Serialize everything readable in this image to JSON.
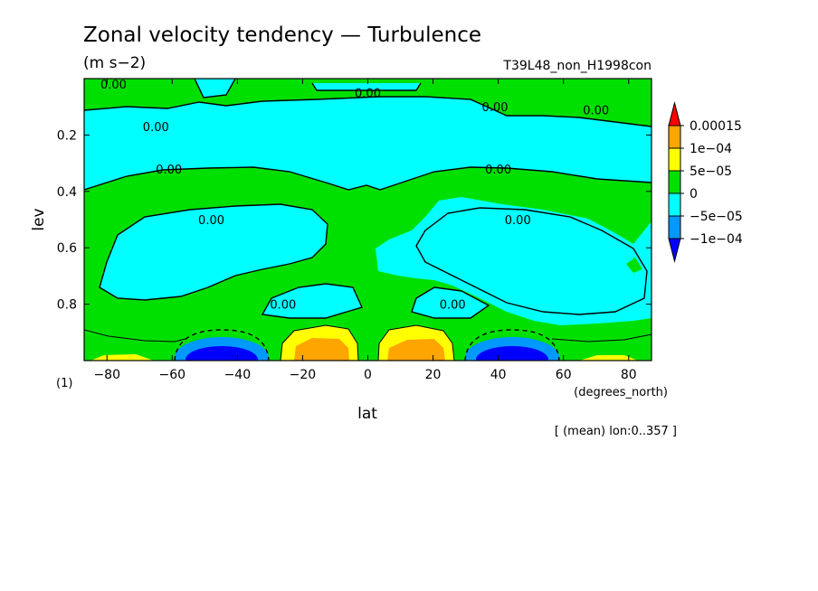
{
  "chart_data": {
    "type": "contour",
    "title": "Zonal velocity tendency — Turbulence",
    "units": "(m s−2)",
    "run_name": "T39L48_non_H1998con",
    "xlabel": "lat",
    "x_units": "(degrees_north)",
    "ylabel": "lev",
    "y_units": "(1)",
    "footnote": "[ (mean) lon:0..357 ]",
    "xlim": [
      -87,
      87
    ],
    "ylim": [
      0.0,
      1.0
    ],
    "y_inverted": true,
    "x_ticks": [
      {
        "v": -80,
        "label": "−80"
      },
      {
        "v": -60,
        "label": "−60"
      },
      {
        "v": -40,
        "label": "−40"
      },
      {
        "v": -20,
        "label": "−20"
      },
      {
        "v": 0,
        "label": "0"
      },
      {
        "v": 20,
        "label": "20"
      },
      {
        "v": 40,
        "label": "40"
      },
      {
        "v": 60,
        "label": "60"
      },
      {
        "v": 80,
        "label": "80"
      }
    ],
    "y_ticks": [
      {
        "v": 0.2,
        "label": "0.2"
      },
      {
        "v": 0.4,
        "label": "0.4"
      },
      {
        "v": 0.6,
        "label": "0.6"
      },
      {
        "v": 0.8,
        "label": "0.8"
      }
    ],
    "colorbar": {
      "levels": [
        {
          "label": "0.00015",
          "color": "#ff0000"
        },
        {
          "label": "1e−04",
          "color": "#ffa500"
        },
        {
          "label": "5e−05",
          "color": "#ffff00"
        },
        {
          "label": "0",
          "color": "#00e000"
        },
        {
          "label": "−5e−05",
          "color": "#00ffff"
        },
        {
          "label": "−1e−04",
          "color": "#0099ff"
        }
      ],
      "bottom_color": "#0000ff"
    },
    "contour_labels": [
      {
        "text": "0.00",
        "lat": -78,
        "lev": 0.02
      },
      {
        "text": "0.00",
        "lat": 0,
        "lev": 0.05
      },
      {
        "text": "0.00",
        "lat": 39,
        "lev": 0.1
      },
      {
        "text": "0.00",
        "lat": 70,
        "lev": 0.11
      },
      {
        "text": "0.00",
        "lat": -65,
        "lev": 0.17
      },
      {
        "text": "0.00",
        "lat": -61,
        "lev": 0.32
      },
      {
        "text": "0.00",
        "lat": 40,
        "lev": 0.32
      },
      {
        "text": "0.00",
        "lat": -48,
        "lev": 0.5
      },
      {
        "text": "0.00",
        "lat": 46,
        "lev": 0.5
      },
      {
        "text": "0.00",
        "lat": -26,
        "lev": 0.8
      },
      {
        "text": "0.00",
        "lat": 26,
        "lev": 0.8
      }
    ],
    "regions": [
      {
        "name": "near-surface easterly tendency (SH)",
        "color": "#0000ff",
        "lat": -43,
        "lev": 0.96,
        "w": 18,
        "h": 0.06
      },
      {
        "name": "near-surface easterly tendency (NH)",
        "color": "#0000ff",
        "lat": 43,
        "lev": 0.96,
        "w": 18,
        "h": 0.06
      },
      {
        "name": "near-surface westerly tendency (SH)",
        "color": "#ffa500",
        "lat": -15,
        "lev": 0.96,
        "w": 12,
        "h": 0.06
      },
      {
        "name": "near-surface westerly tendency (NH)",
        "color": "#ffa500",
        "lat": 15,
        "lev": 0.96,
        "w": 12,
        "h": 0.06
      }
    ],
    "grid": false,
    "legend_position": "right"
  }
}
